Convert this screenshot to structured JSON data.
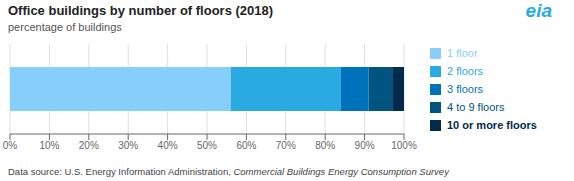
{
  "chart_data": {
    "type": "bar",
    "title": "Office buildings by number of floors (2018)",
    "subtitle": "percentage of buildings",
    "orientation": "horizontal",
    "stacked": true,
    "categories": [
      null
    ],
    "series": [
      {
        "name": "1 floor",
        "color": "#87CEFA",
        "values": [
          56
        ]
      },
      {
        "name": "2 floors",
        "color": "#29ABE2",
        "values": [
          28
        ]
      },
      {
        "name": "3 floors",
        "color": "#0072BC",
        "values": [
          7
        ]
      },
      {
        "name": "4 to 9 floors",
        "color": "#005580",
        "values": [
          6
        ]
      },
      {
        "name": "10 or more floors",
        "color": "#002B4E",
        "values": [
          3
        ]
      }
    ],
    "xlim": [
      0,
      100
    ],
    "xticks": [
      {
        "value": 0,
        "label": "0%"
      },
      {
        "value": 10,
        "label": "10%"
      },
      {
        "value": 20,
        "label": "20%"
      },
      {
        "value": 30,
        "label": "30%"
      },
      {
        "value": 40,
        "label": "40%"
      },
      {
        "value": 50,
        "label": "50%"
      },
      {
        "value": 60,
        "label": "60%"
      },
      {
        "value": 70,
        "label": "70%"
      },
      {
        "value": 80,
        "label": "80%"
      },
      {
        "value": 90,
        "label": "90%"
      },
      {
        "value": 100,
        "label": "100%"
      }
    ],
    "grid": true,
    "tick_labels": "x",
    "legend": "right",
    "annotations": [
      "Data source: U.S. Energy Information Administration, ",
      "Commercial Buildings Energy Consumption Survey",
      "eia"
    ]
  }
}
